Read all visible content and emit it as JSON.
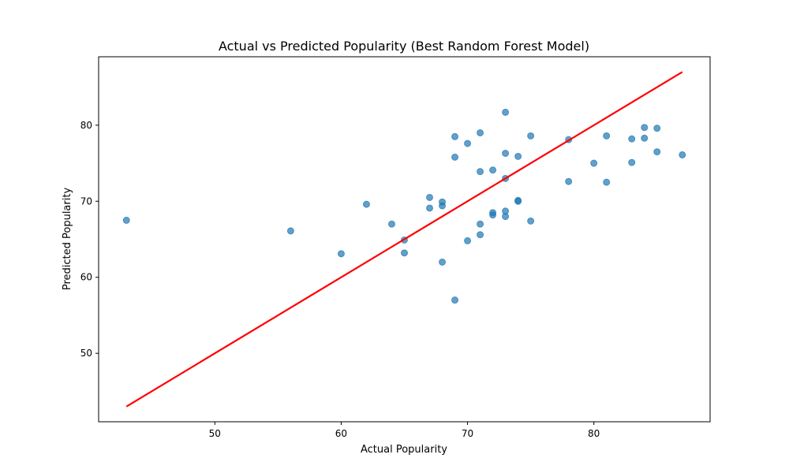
{
  "chart_data": {
    "type": "scatter",
    "title": "Actual vs Predicted Popularity (Best Random Forest Model)",
    "xlabel": "Actual Popularity",
    "ylabel": "Predicted Popularity",
    "xlim": [
      40.8,
      89.2
    ],
    "ylim": [
      41.0,
      89.0
    ],
    "xticks": [
      50,
      60,
      70,
      80
    ],
    "yticks": [
      50,
      60,
      70,
      80
    ],
    "grid": false,
    "legend": "none",
    "colors": {
      "points": "#1f77b4",
      "line": "#ff0000"
    },
    "series": [
      {
        "type": "scatter",
        "points": [
          [
            43,
            67.5
          ],
          [
            56,
            66.1
          ],
          [
            60,
            63.1
          ],
          [
            62,
            69.6
          ],
          [
            64,
            67.0
          ],
          [
            65,
            64.9
          ],
          [
            65,
            63.2
          ],
          [
            67,
            70.5
          ],
          [
            67,
            69.1
          ],
          [
            68,
            69.9
          ],
          [
            68,
            69.4
          ],
          [
            68,
            62.0
          ],
          [
            69,
            78.5
          ],
          [
            69,
            75.8
          ],
          [
            69,
            57.0
          ],
          [
            70,
            77.6
          ],
          [
            70,
            64.8
          ],
          [
            71,
            79.0
          ],
          [
            71,
            73.9
          ],
          [
            71,
            67.0
          ],
          [
            71,
            65.6
          ],
          [
            72,
            74.1
          ],
          [
            72,
            68.5
          ],
          [
            72,
            68.2
          ],
          [
            73,
            81.7
          ],
          [
            73,
            76.3
          ],
          [
            73,
            73.0
          ],
          [
            73,
            68.7
          ],
          [
            73,
            68.0
          ],
          [
            74,
            75.9
          ],
          [
            74,
            70.1
          ],
          [
            74,
            70.0
          ],
          [
            75,
            78.6
          ],
          [
            75,
            67.4
          ],
          [
            78,
            78.1
          ],
          [
            78,
            72.6
          ],
          [
            80,
            75.0
          ],
          [
            81,
            78.6
          ],
          [
            81,
            72.5
          ],
          [
            83,
            78.2
          ],
          [
            83,
            75.1
          ],
          [
            84,
            79.7
          ],
          [
            84,
            78.3
          ],
          [
            85,
            79.6
          ],
          [
            85,
            76.5
          ],
          [
            87,
            76.1
          ]
        ]
      },
      {
        "type": "line",
        "points": [
          [
            43,
            43
          ],
          [
            87,
            87
          ]
        ]
      }
    ]
  }
}
